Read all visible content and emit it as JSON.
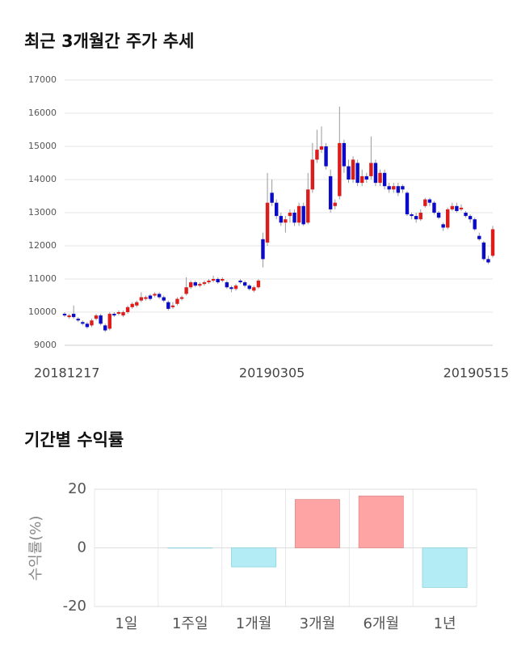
{
  "chart_data": [
    {
      "type": "candlestick",
      "title": "최근 3개월간 주가 추세",
      "categories": [
        "20181217",
        null,
        null,
        null,
        null,
        null,
        null,
        null,
        null,
        null,
        null,
        null,
        null,
        null,
        null,
        null,
        null,
        null,
        null,
        null,
        null,
        null,
        null,
        null,
        null,
        null,
        null,
        null,
        null,
        null,
        null,
        null,
        null,
        null,
        null,
        null,
        null,
        null,
        null,
        null,
        null,
        null,
        null,
        null,
        null,
        null,
        "20190305",
        null,
        null,
        null,
        null,
        null,
        null,
        null,
        null,
        null,
        null,
        null,
        null,
        null,
        null,
        null,
        null,
        null,
        null,
        null,
        null,
        null,
        null,
        null,
        null,
        null,
        null,
        null,
        null,
        null,
        null,
        null,
        null,
        null,
        null,
        null,
        null,
        null,
        null,
        null,
        null,
        null,
        null,
        null,
        null,
        null,
        null,
        null,
        null,
        "20190515"
      ],
      "open": [
        9950,
        9850,
        9950,
        9800,
        9700,
        9650,
        9600,
        9800,
        9900,
        9600,
        9500,
        9950,
        9950,
        9900,
        10000,
        10150,
        10200,
        10350,
        10400,
        10500,
        10500,
        10550,
        10450,
        10300,
        10150,
        10250,
        10400,
        10550,
        10750,
        10900,
        10800,
        10850,
        10900,
        10950,
        11000,
        10950,
        10900,
        10750,
        10700,
        10950,
        10900,
        10800,
        10650,
        10750,
        12200,
        12100,
        13600,
        13300,
        12900,
        12700,
        12900,
        13000,
        12700,
        13200,
        12700,
        13700,
        14600,
        14900,
        15000,
        14100,
        13200,
        13500,
        15100,
        14400,
        14000,
        14500,
        13900,
        14100,
        14100,
        14500,
        13900,
        14200,
        13800,
        13700,
        13800,
        13800,
        13600,
        12950,
        12900,
        12800,
        13200,
        13400,
        13300,
        13000,
        12650,
        12550,
        13100,
        13200,
        13100,
        13000,
        12900,
        12800,
        12300,
        12100,
        11600,
        11700
      ],
      "high": [
        10000,
        9950,
        10200,
        9850,
        9750,
        9700,
        9800,
        9950,
        9950,
        9650,
        10000,
        10000,
        10050,
        10050,
        10200,
        10300,
        10350,
        10600,
        10500,
        10550,
        10600,
        10600,
        10500,
        10350,
        10300,
        10450,
        10500,
        11050,
        10950,
        10950,
        10900,
        10950,
        11000,
        11100,
        11050,
        11050,
        10950,
        10800,
        10850,
        11000,
        10950,
        10850,
        10800,
        11000,
        12400,
        14200,
        14000,
        13400,
        13000,
        12900,
        13100,
        13100,
        13300,
        13300,
        14200,
        15100,
        15500,
        15600,
        15100,
        14300,
        13400,
        16200,
        15200,
        14600,
        14700,
        14600,
        14300,
        14200,
        15300,
        14600,
        14300,
        14300,
        13900,
        13900,
        13900,
        13850,
        13650,
        13000,
        13000,
        13100,
        13450,
        13450,
        13350,
        13050,
        12700,
        13150,
        13300,
        13300,
        13250,
        13050,
        12950,
        12850,
        12400,
        12150,
        11700,
        12600
      ],
      "low": [
        9850,
        9800,
        9800,
        9700,
        9600,
        9500,
        9550,
        9750,
        9600,
        9400,
        9450,
        9850,
        9900,
        9850,
        9950,
        10100,
        10150,
        10300,
        10350,
        10350,
        10450,
        10400,
        10300,
        10050,
        10100,
        10200,
        10350,
        10500,
        10700,
        10750,
        10750,
        10800,
        10850,
        10900,
        10850,
        10900,
        10700,
        10600,
        10650,
        10850,
        10750,
        10650,
        10600,
        10700,
        11350,
        12000,
        13200,
        12800,
        12600,
        12400,
        12700,
        12600,
        12600,
        12600,
        12650,
        13600,
        14500,
        14800,
        14300,
        13000,
        13100,
        13400,
        14200,
        13900,
        13900,
        13800,
        13800,
        13900,
        14000,
        13800,
        13800,
        13700,
        13600,
        13600,
        13500,
        13600,
        12900,
        12800,
        12700,
        12750,
        13150,
        13200,
        12950,
        12800,
        12450,
        12500,
        13050,
        13000,
        13050,
        12850,
        12700,
        12450,
        12150,
        11550,
        11450,
        11650
      ],
      "close": [
        9900,
        9900,
        9850,
        9750,
        9650,
        9550,
        9750,
        9900,
        9650,
        9450,
        9950,
        9900,
        10000,
        10000,
        10150,
        10250,
        10300,
        10450,
        10450,
        10400,
        10550,
        10450,
        10350,
        10100,
        10200,
        10400,
        10450,
        10750,
        10900,
        10800,
        10850,
        10900,
        10950,
        11000,
        10900,
        11000,
        10750,
        10700,
        10800,
        10900,
        10800,
        10700,
        10750,
        10950,
        11600,
        13300,
        13300,
        12900,
        12700,
        12800,
        13000,
        12700,
        13200,
        12650,
        13700,
        14600,
        14900,
        15000,
        14400,
        13100,
        13300,
        15100,
        14400,
        14000,
        14600,
        13900,
        14100,
        14000,
        14500,
        13900,
        14200,
        13800,
        13700,
        13800,
        13600,
        13700,
        12950,
        12900,
        12800,
        13000,
        13400,
        13300,
        13000,
        12850,
        12550,
        13100,
        13200,
        13050,
        13150,
        12900,
        12800,
        12500,
        12200,
        11600,
        11500,
        12500
      ],
      "up_color": "#dd1c1c",
      "down_color": "#0a0ac8",
      "ylim": [
        9000,
        17000
      ],
      "yticks": [
        9000,
        10000,
        11000,
        12000,
        13000,
        14000,
        15000,
        16000,
        17000
      ],
      "grid": true
    },
    {
      "type": "bar",
      "title": "기간별 수익률",
      "ylabel": "수익률(%)",
      "categories": [
        "1일",
        "1주일",
        "1개월",
        "3개월",
        "6개월",
        "1년"
      ],
      "values": [
        0,
        -0.1,
        -6.5,
        16.5,
        17.7,
        -13.5
      ],
      "colors": [
        "#b3ecf4",
        "#b3ecf4",
        "#b3ecf4",
        "#ffa4a4",
        "#ffa4a4",
        "#b3ecf4"
      ],
      "ylim": [
        -20,
        20
      ],
      "yticks": [
        -20,
        0,
        20
      ],
      "grid": true
    }
  ]
}
